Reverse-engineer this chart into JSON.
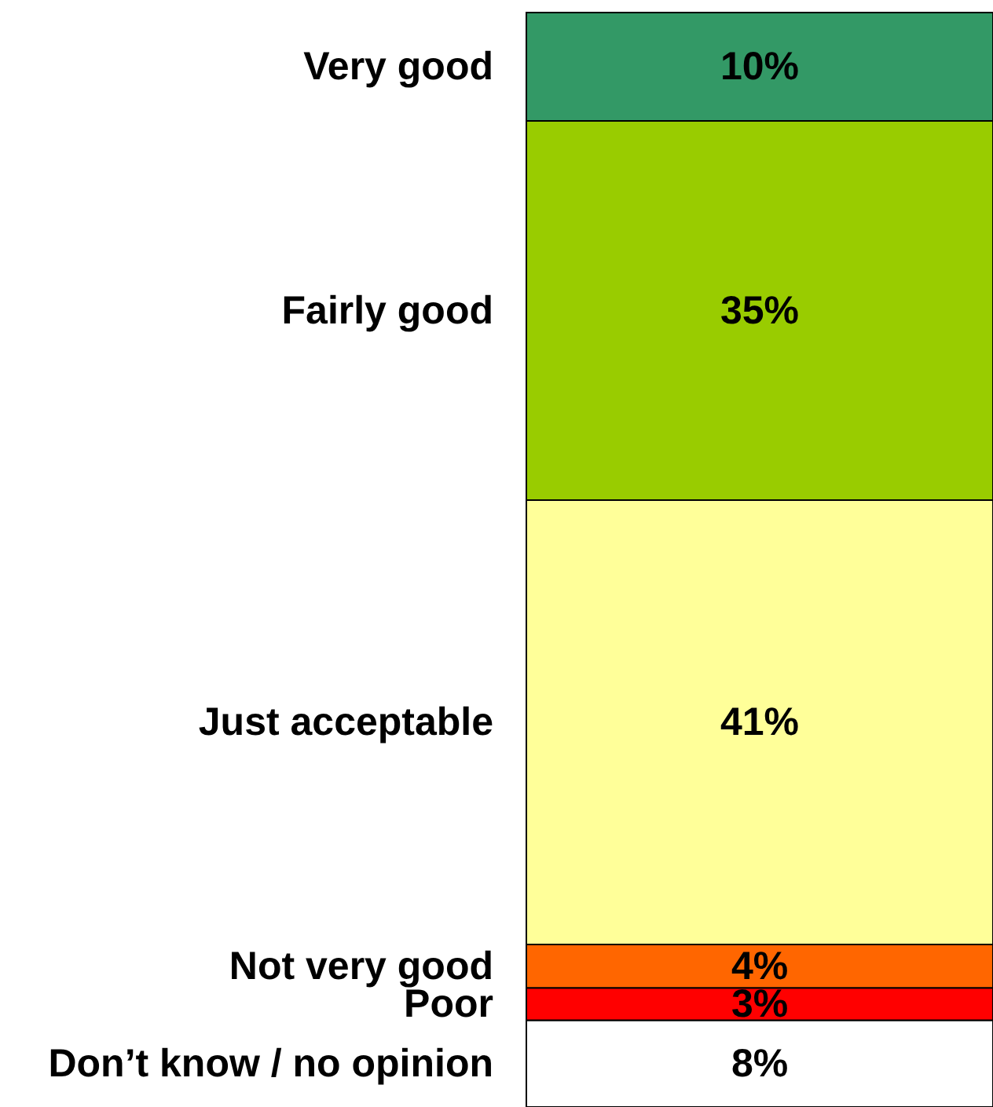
{
  "chart_data": {
    "type": "bar",
    "stacked": true,
    "categories": [
      null
    ],
    "series": [
      {
        "name": "Don’t know / no opinion",
        "color": "#ffffff",
        "values": [
          8
        ],
        "value_labels": [
          "8%"
        ]
      },
      {
        "name": "Poor",
        "color": "#ff0000",
        "values": [
          3
        ],
        "value_labels": [
          "3%"
        ]
      },
      {
        "name": "Not very good",
        "color": "#ff6600",
        "values": [
          4
        ],
        "value_labels": [
          "4%"
        ]
      },
      {
        "name": "Just acceptable",
        "color": "#ffff99",
        "values": [
          41
        ],
        "value_labels": [
          "41%"
        ]
      },
      {
        "name": "Fairly good",
        "color": "#99cc00",
        "values": [
          35
        ],
        "value_labels": [
          "35%"
        ]
      },
      {
        "name": "Very good",
        "color": "#339966",
        "values": [
          10
        ],
        "value_labels": [
          "10%"
        ]
      }
    ]
  }
}
